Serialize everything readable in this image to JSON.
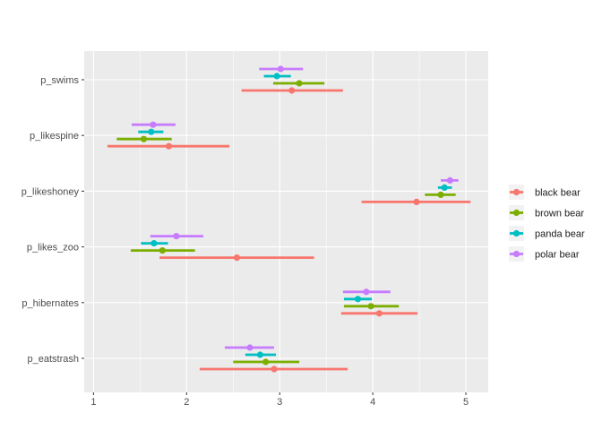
{
  "chart_data": {
    "type": "pointrange",
    "title": "",
    "xlabel": "",
    "ylabel": "",
    "xlim": [
      0.9,
      5.24
    ],
    "x_ticks": [
      "1",
      "2",
      "3",
      "4",
      "5"
    ],
    "grid": true,
    "legend_position": "right",
    "categories": [
      "p_swims",
      "p_likespine",
      "p_likeshoney",
      "p_likes_zoo",
      "p_hibernates",
      "p_eatstrash"
    ],
    "series": [
      {
        "name": "black bear",
        "color": "#F8766D",
        "values": [
          3.13,
          1.81,
          4.47,
          2.54,
          4.07,
          2.94
        ],
        "low": [
          2.59,
          1.15,
          3.88,
          1.71,
          3.66,
          2.14
        ],
        "high": [
          3.68,
          2.46,
          5.05,
          3.37,
          4.48,
          3.73
        ]
      },
      {
        "name": "brown bear",
        "color": "#7CAE00",
        "values": [
          3.21,
          1.54,
          4.73,
          1.74,
          3.98,
          2.85
        ],
        "low": [
          2.93,
          1.25,
          4.56,
          1.4,
          3.69,
          2.5
        ],
        "high": [
          3.48,
          1.84,
          4.89,
          2.09,
          4.28,
          3.21
        ]
      },
      {
        "name": "panda bear",
        "color": "#00BFC4",
        "values": [
          2.97,
          1.62,
          4.77,
          1.65,
          3.84,
          2.79
        ],
        "low": [
          2.83,
          1.48,
          4.7,
          1.51,
          3.69,
          2.63
        ],
        "high": [
          3.12,
          1.75,
          4.85,
          1.8,
          3.99,
          2.96
        ]
      },
      {
        "name": "polar bear",
        "color": "#C77CFF",
        "values": [
          3.01,
          1.64,
          4.83,
          1.89,
          3.93,
          2.68
        ],
        "low": [
          2.78,
          1.41,
          4.73,
          1.61,
          3.68,
          2.41
        ],
        "high": [
          3.25,
          1.88,
          4.92,
          2.18,
          4.19,
          2.94
        ]
      }
    ]
  }
}
